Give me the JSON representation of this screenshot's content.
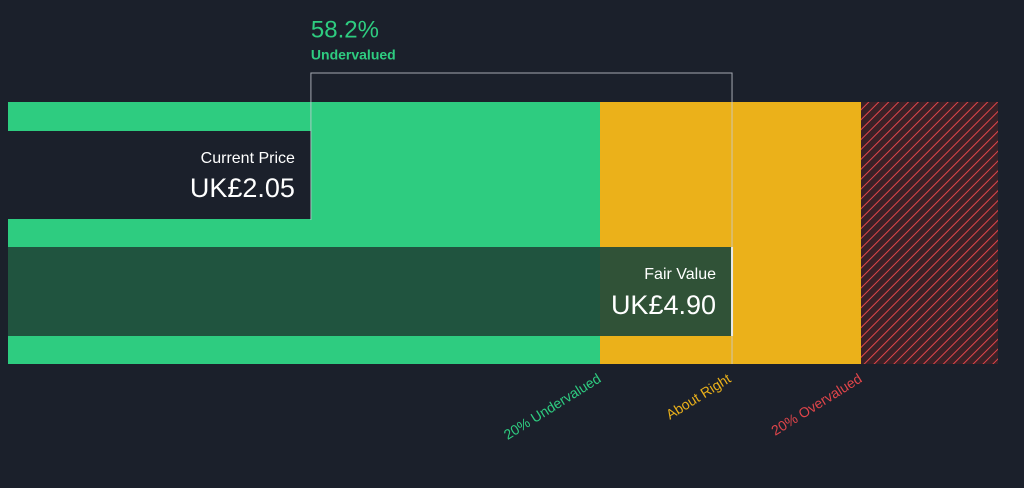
{
  "chart_data": {
    "type": "valuation",
    "current_price": {
      "label": "Current Price",
      "value": 2.05,
      "value_label": "UK£2.05"
    },
    "fair_value": {
      "label": "Fair Value",
      "value": 4.9,
      "value_label": "UK£4.90"
    },
    "discount": {
      "value": 58.2,
      "value_label": "58.2%",
      "label": "Undervalued"
    },
    "zones": [
      {
        "label": "20% Undervalued",
        "color": "#2ecc80"
      },
      {
        "label": "About Right",
        "color": "#ebb11a"
      },
      {
        "label": "20% Overvalued",
        "color": "#e0454a"
      }
    ],
    "xlim": [
      0,
      6.7
    ]
  }
}
